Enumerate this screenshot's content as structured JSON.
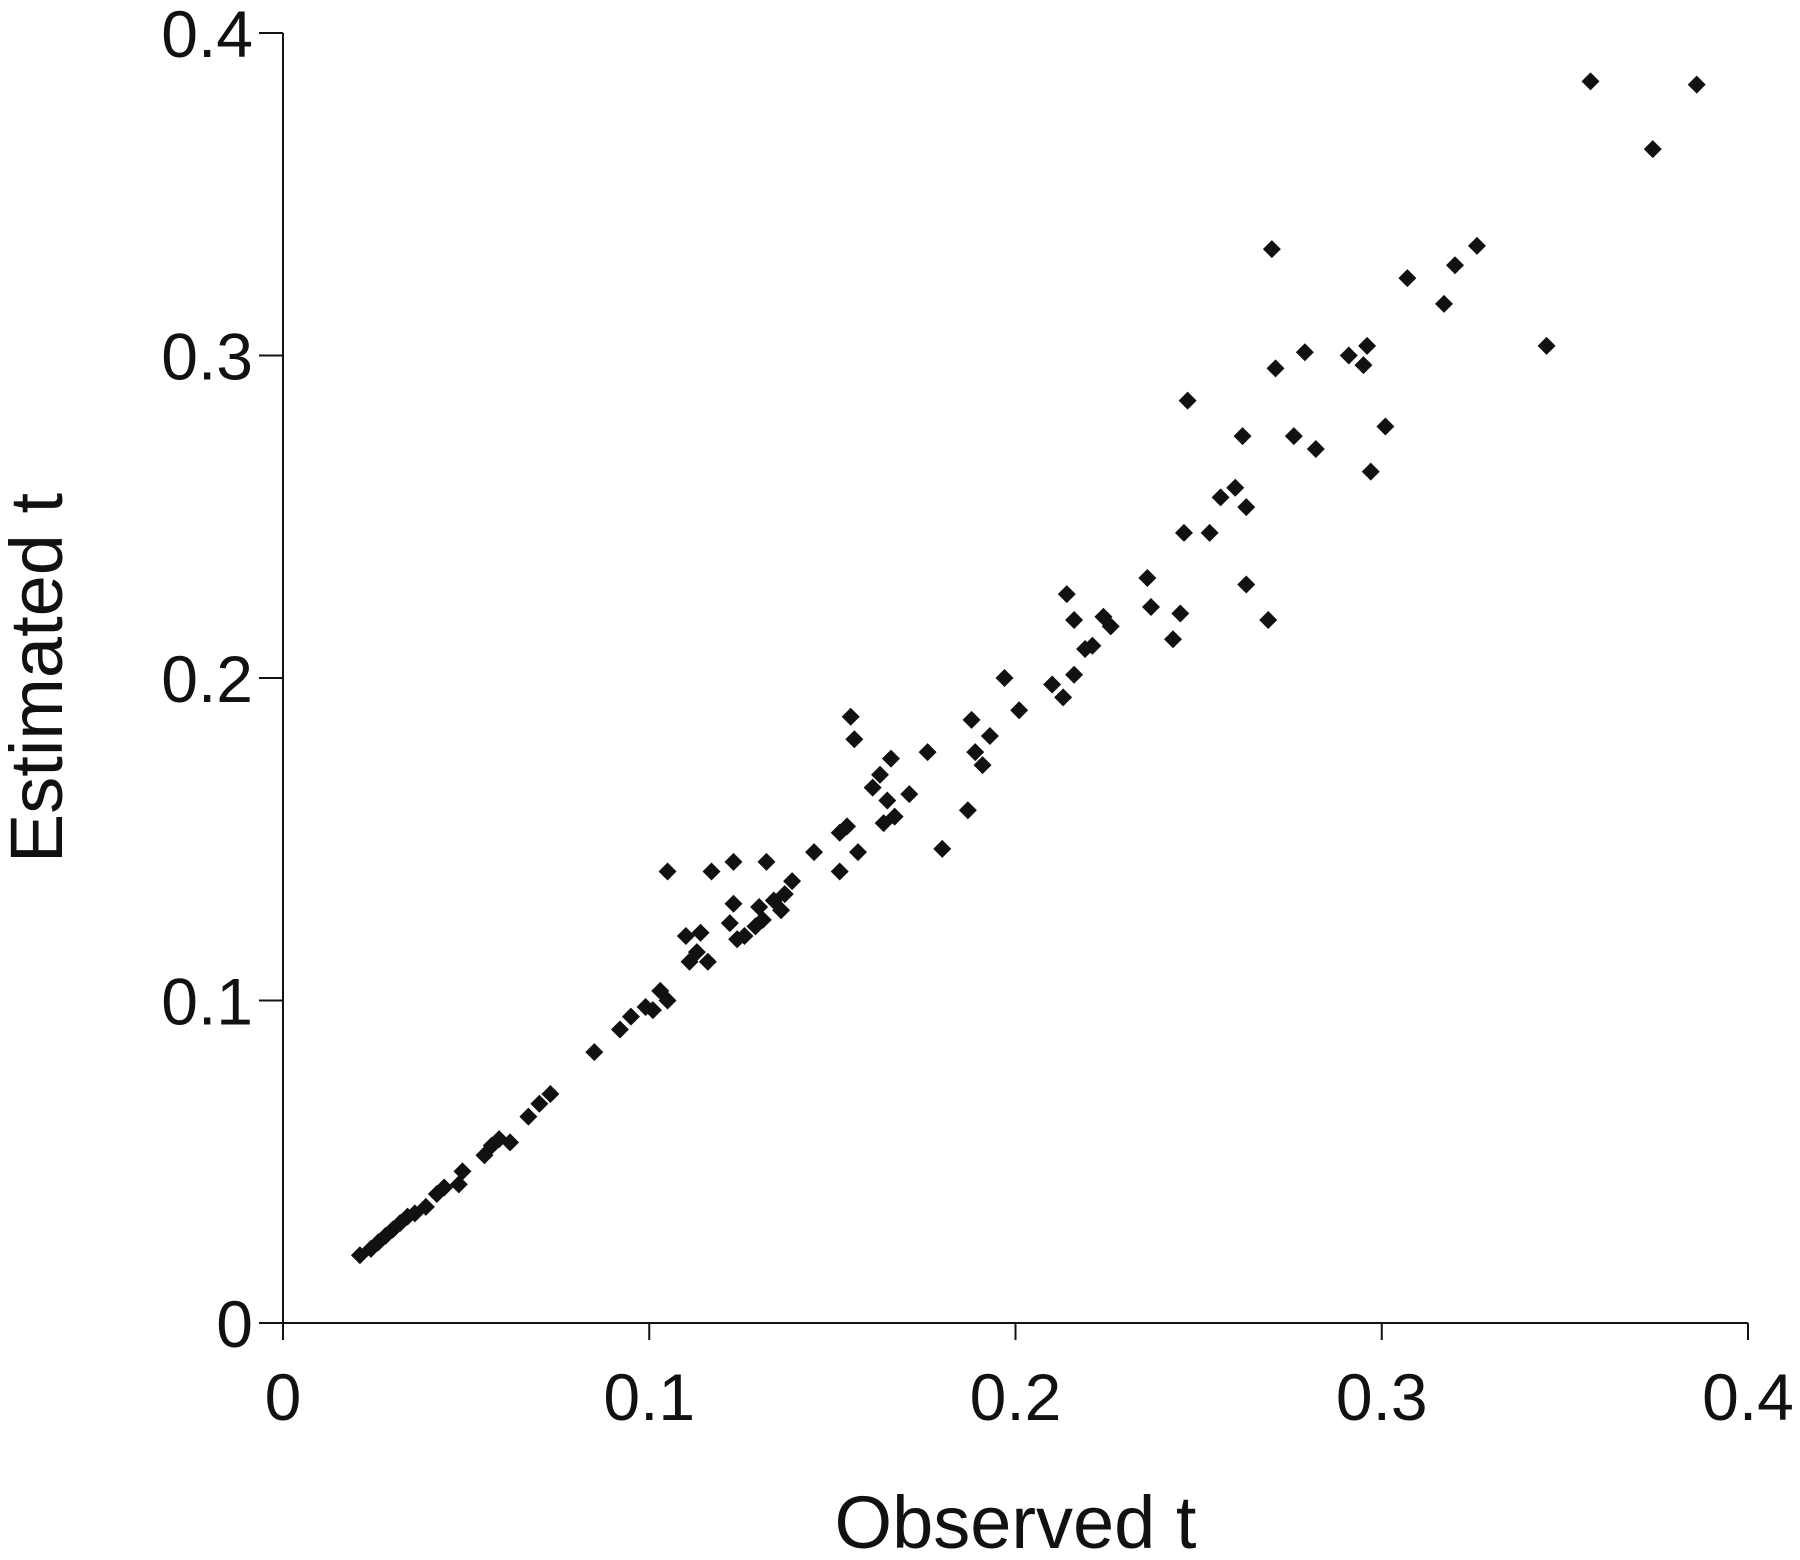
{
  "chart_data": {
    "type": "scatter",
    "title": "",
    "xlabel": "Observed t",
    "ylabel": "Estimated t",
    "xlim": [
      0,
      0.4
    ],
    "ylim": [
      0,
      0.4
    ],
    "x_ticks": [
      "0",
      "0.1",
      "0.2",
      "0.3",
      "0.4"
    ],
    "y_ticks": [
      "0",
      "0.1",
      "0.2",
      "0.3",
      "0.4"
    ],
    "grid": false,
    "legend": "none",
    "marker": "diamond",
    "marker_color": "#111111",
    "points": [
      [
        0.021,
        0.021
      ],
      [
        0.024,
        0.023
      ],
      [
        0.026,
        0.025
      ],
      [
        0.028,
        0.027
      ],
      [
        0.03,
        0.029
      ],
      [
        0.032,
        0.031
      ],
      [
        0.034,
        0.033
      ],
      [
        0.036,
        0.034
      ],
      [
        0.039,
        0.036
      ],
      [
        0.042,
        0.04
      ],
      [
        0.044,
        0.042
      ],
      [
        0.048,
        0.043
      ],
      [
        0.049,
        0.047
      ],
      [
        0.055,
        0.052
      ],
      [
        0.057,
        0.055
      ],
      [
        0.059,
        0.057
      ],
      [
        0.062,
        0.056
      ],
      [
        0.067,
        0.064
      ],
      [
        0.07,
        0.068
      ],
      [
        0.073,
        0.071
      ],
      [
        0.085,
        0.084
      ],
      [
        0.092,
        0.091
      ],
      [
        0.095,
        0.095
      ],
      [
        0.099,
        0.098
      ],
      [
        0.101,
        0.097
      ],
      [
        0.103,
        0.103
      ],
      [
        0.105,
        0.1
      ],
      [
        0.105,
        0.14
      ],
      [
        0.11,
        0.12
      ],
      [
        0.111,
        0.112
      ],
      [
        0.113,
        0.115
      ],
      [
        0.114,
        0.121
      ],
      [
        0.116,
        0.112
      ],
      [
        0.117,
        0.14
      ],
      [
        0.122,
        0.124
      ],
      [
        0.123,
        0.143
      ],
      [
        0.123,
        0.13
      ],
      [
        0.124,
        0.119
      ],
      [
        0.126,
        0.12
      ],
      [
        0.129,
        0.123
      ],
      [
        0.13,
        0.129
      ],
      [
        0.131,
        0.125
      ],
      [
        0.132,
        0.143
      ],
      [
        0.134,
        0.131
      ],
      [
        0.136,
        0.128
      ],
      [
        0.137,
        0.133
      ],
      [
        0.139,
        0.137
      ],
      [
        0.145,
        0.146
      ],
      [
        0.152,
        0.14
      ],
      [
        0.152,
        0.152
      ],
      [
        0.154,
        0.154
      ],
      [
        0.155,
        0.188
      ],
      [
        0.156,
        0.181
      ],
      [
        0.157,
        0.146
      ],
      [
        0.161,
        0.166
      ],
      [
        0.163,
        0.17
      ],
      [
        0.164,
        0.155
      ],
      [
        0.165,
        0.162
      ],
      [
        0.166,
        0.175
      ],
      [
        0.167,
        0.157
      ],
      [
        0.171,
        0.164
      ],
      [
        0.176,
        0.177
      ],
      [
        0.18,
        0.147
      ],
      [
        0.187,
        0.159
      ],
      [
        0.188,
        0.187
      ],
      [
        0.189,
        0.177
      ],
      [
        0.191,
        0.173
      ],
      [
        0.193,
        0.182
      ],
      [
        0.197,
        0.2
      ],
      [
        0.201,
        0.19
      ],
      [
        0.21,
        0.198
      ],
      [
        0.213,
        0.194
      ],
      [
        0.214,
        0.226
      ],
      [
        0.216,
        0.201
      ],
      [
        0.216,
        0.218
      ],
      [
        0.219,
        0.209
      ],
      [
        0.221,
        0.21
      ],
      [
        0.224,
        0.219
      ],
      [
        0.226,
        0.216
      ],
      [
        0.236,
        0.231
      ],
      [
        0.237,
        0.222
      ],
      [
        0.243,
        0.212
      ],
      [
        0.245,
        0.22
      ],
      [
        0.246,
        0.245
      ],
      [
        0.247,
        0.286
      ],
      [
        0.253,
        0.245
      ],
      [
        0.256,
        0.256
      ],
      [
        0.26,
        0.259
      ],
      [
        0.262,
        0.275
      ],
      [
        0.263,
        0.253
      ],
      [
        0.263,
        0.229
      ],
      [
        0.269,
        0.218
      ],
      [
        0.27,
        0.333
      ],
      [
        0.271,
        0.296
      ],
      [
        0.276,
        0.275
      ],
      [
        0.279,
        0.301
      ],
      [
        0.282,
        0.271
      ],
      [
        0.291,
        0.3
      ],
      [
        0.295,
        0.297
      ],
      [
        0.296,
        0.303
      ],
      [
        0.297,
        0.264
      ],
      [
        0.301,
        0.278
      ],
      [
        0.307,
        0.324
      ],
      [
        0.317,
        0.316
      ],
      [
        0.32,
        0.328
      ],
      [
        0.326,
        0.334
      ],
      [
        0.345,
        0.303
      ],
      [
        0.357,
        0.385
      ],
      [
        0.374,
        0.364
      ],
      [
        0.386,
        0.384
      ]
    ]
  }
}
